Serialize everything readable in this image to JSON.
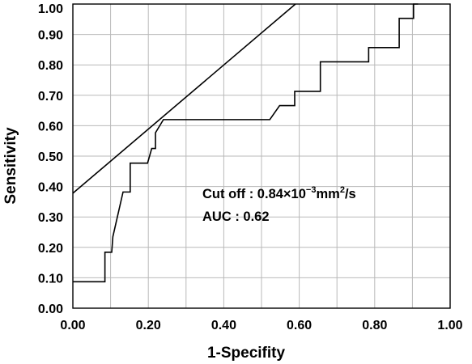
{
  "chart_data": {
    "type": "line",
    "xlabel": "1-Specifity",
    "ylabel": "Sensitivity",
    "xlim": [
      0,
      1
    ],
    "ylim": [
      0,
      1
    ],
    "grid": true,
    "x_ticks": [
      "0.00",
      "0.20",
      "0.40",
      "0.60",
      "0.80",
      "1.00"
    ],
    "y_ticks": [
      "0.00",
      "0.10",
      "0.20",
      "0.30",
      "0.40",
      "0.50",
      "0.60",
      "0.70",
      "0.80",
      "0.90",
      "1.00"
    ],
    "annotations": [
      {
        "prefix": "Cut off : 0.84×10",
        "sup1": "−3",
        "mid": "mm",
        "sup2": "2",
        "suffix": "/s"
      },
      {
        "text": "AUC : 0.62"
      }
    ],
    "series": [
      {
        "points": [
          [
            0.0,
            0.087
          ],
          [
            0.085,
            0.087
          ],
          [
            0.085,
            0.184
          ],
          [
            0.103,
            0.184
          ],
          [
            0.106,
            0.235
          ],
          [
            0.133,
            0.382
          ],
          [
            0.152,
            0.382
          ],
          [
            0.152,
            0.477
          ],
          [
            0.198,
            0.477
          ],
          [
            0.209,
            0.525
          ],
          [
            0.219,
            0.525
          ],
          [
            0.219,
            0.577
          ],
          [
            0.24,
            0.62
          ],
          [
            0.522,
            0.62
          ],
          [
            0.548,
            0.666
          ],
          [
            0.588,
            0.666
          ],
          [
            0.588,
            0.713
          ],
          [
            0.656,
            0.713
          ],
          [
            0.656,
            0.81
          ],
          [
            0.784,
            0.81
          ],
          [
            0.784,
            0.857
          ],
          [
            0.865,
            0.857
          ],
          [
            0.865,
            0.953
          ],
          [
            0.903,
            0.953
          ],
          [
            0.903,
            1.0
          ],
          [
            0.915,
            1.0
          ]
        ]
      },
      {
        "points": [
          [
            0.0,
            0.378
          ],
          [
            0.59,
            1.0
          ]
        ]
      }
    ]
  }
}
